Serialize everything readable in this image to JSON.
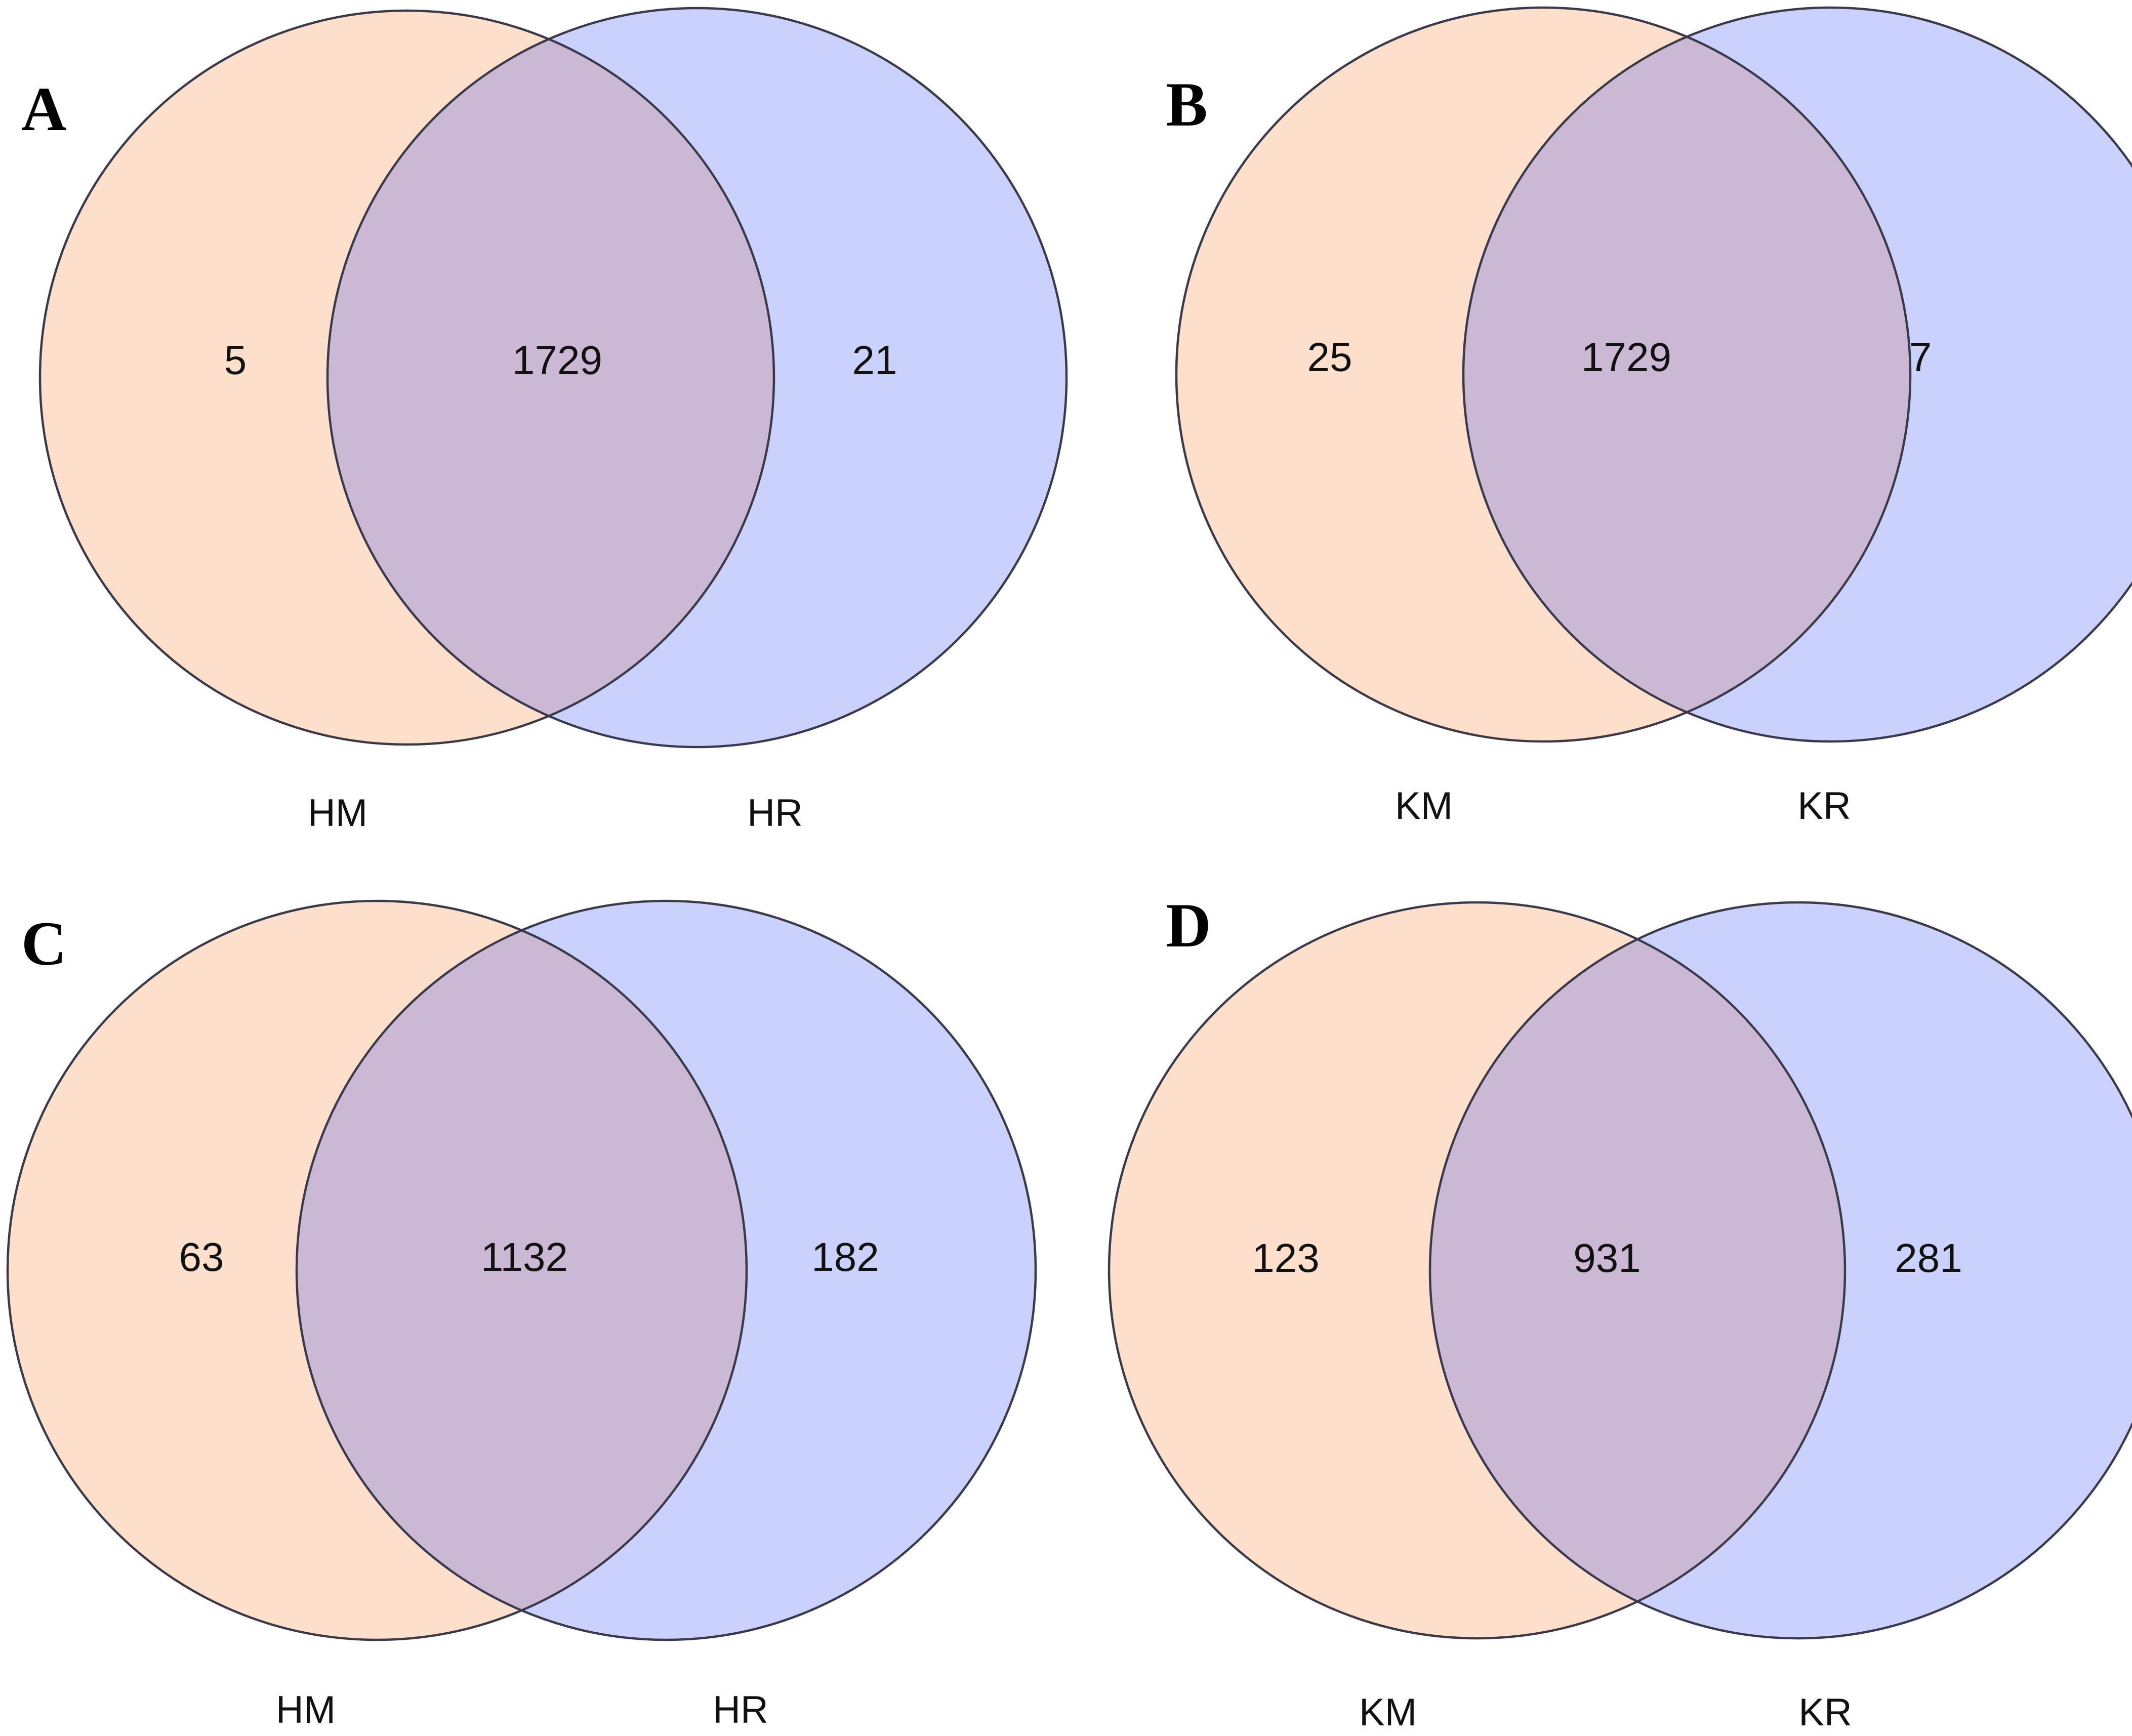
{
  "colors": {
    "left_set": "#fddfcc",
    "right_set": "#cbd1fd",
    "overlap": "#cab8d4",
    "outline": "#3a3a4a"
  },
  "panels": [
    {
      "letter": "A",
      "left_label": "HM",
      "right_label": "HR",
      "left_only": "5",
      "overlap": "1729",
      "right_only": "21"
    },
    {
      "letter": "B",
      "left_label": "KM",
      "right_label": "KR",
      "left_only": "25",
      "overlap": "1729",
      "right_only": "7"
    },
    {
      "letter": "C",
      "left_label": "HM",
      "right_label": "HR",
      "left_only": "63",
      "overlap": "1132",
      "right_only": "182"
    },
    {
      "letter": "D",
      "left_label": "KM",
      "right_label": "KR",
      "left_only": "123",
      "overlap": "931",
      "right_only": "281"
    }
  ]
}
